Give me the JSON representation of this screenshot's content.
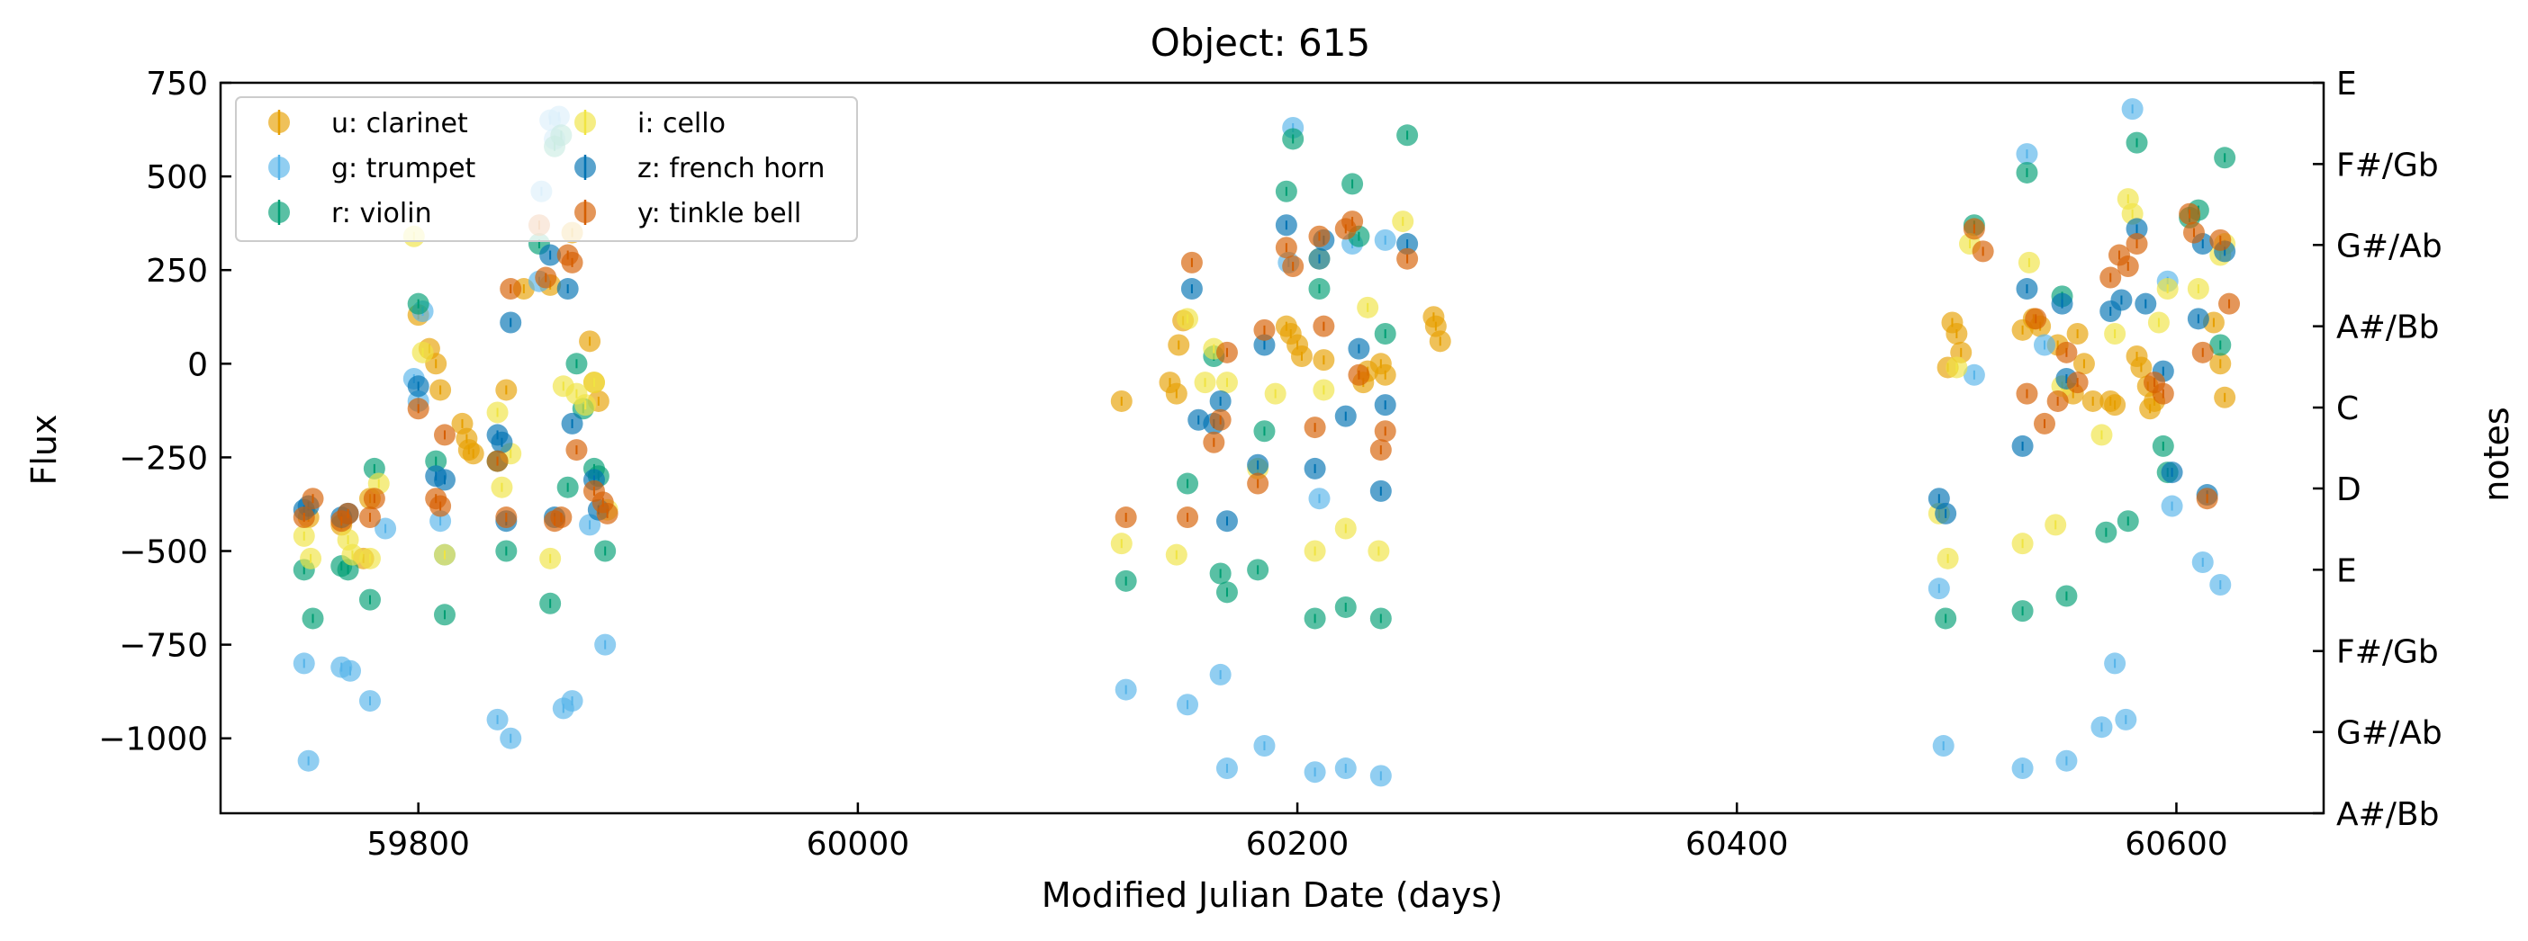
{
  "chart_data": {
    "type": "scatter",
    "title": "Object: 615",
    "xlabel": "Modified Julian Date (days)",
    "ylabel": "Flux",
    "y2label": "notes",
    "xlim": [
      59710,
      60667
    ],
    "ylim": [
      -1200,
      750
    ],
    "x_ticks": [
      59800,
      60000,
      60200,
      60400,
      60600
    ],
    "y_ticks": [
      750,
      500,
      250,
      0,
      -250,
      -500,
      -750,
      -1000
    ],
    "y_tick_labels": [
      "750",
      "500",
      "250",
      "0",
      "−250",
      "−500",
      "−750",
      "−1000"
    ],
    "y2_ticks": [
      {
        "label": "E",
        "value": 750
      },
      {
        "label": "F#/Gb",
        "value": 533
      },
      {
        "label": "G#/Ab",
        "value": 317
      },
      {
        "label": "A#/Bb",
        "value": 100
      },
      {
        "label": "C",
        "value": -117
      },
      {
        "label": "D",
        "value": -333
      },
      {
        "label": "E",
        "value": -550
      },
      {
        "label": "F#/Gb",
        "value": -767
      },
      {
        "label": "G#/Ab",
        "value": -983
      },
      {
        "label": "A#/Bb",
        "value": -1200
      }
    ],
    "legend_location": "upper left",
    "legend_columns": 2,
    "grid": false,
    "series": [
      {
        "name": "u: clarinet",
        "color": "#E69F00",
        "x": [
          59750,
          59765,
          59775,
          59778,
          59800,
          59805,
          59808,
          59810,
          59820,
          59822,
          59823,
          59825,
          59840,
          59848,
          59860,
          59870,
          59878,
          59880,
          59882,
          60120,
          60142,
          60145,
          60146,
          60148,
          60195,
          60197,
          60200,
          60202,
          60212,
          60230,
          60232,
          60238,
          60240,
          60262,
          60263,
          60265,
          60496,
          60498,
          60500,
          60502,
          60530,
          60535,
          60538,
          60546,
          60553,
          60555,
          60558,
          60562,
          60570,
          60572,
          60582,
          60584,
          60587,
          60588,
          60590,
          60617,
          60620,
          60622
        ],
        "y": [
          -410,
          -430,
          -520,
          -360,
          130,
          40,
          0,
          -70,
          -160,
          -200,
          -230,
          -240,
          -70,
          200,
          210,
          350,
          60,
          -50,
          -100,
          -100,
          -50,
          -80,
          50,
          115,
          100,
          80,
          50,
          20,
          10,
          -50,
          -20,
          0,
          -30,
          125,
          100,
          60,
          -10,
          110,
          80,
          30,
          90,
          120,
          100,
          50,
          -80,
          80,
          0,
          -100,
          -100,
          -110,
          20,
          -10,
          -60,
          -120,
          -100,
          110,
          0,
          -90
        ]
      },
      {
        "name": "g: trumpet",
        "color": "#56B4E9",
        "x": [
          59748,
          59750,
          59765,
          59769,
          59778,
          59785,
          59798,
          59800,
          59802,
          59810,
          59812,
          59836,
          59842,
          59855,
          59856,
          59860,
          59862,
          59864,
          59866,
          59870,
          59878,
          59885,
          60122,
          60150,
          60165,
          60168,
          60185,
          60196,
          60198,
          60208,
          60210,
          60222,
          60225,
          60238,
          60240,
          60492,
          60494,
          60508,
          60530,
          60532,
          60540,
          60550,
          60566,
          60572,
          60577,
          60580,
          60596,
          60598,
          60612,
          60620
        ],
        "y": [
          -800,
          -1060,
          -810,
          -820,
          -900,
          -440,
          -40,
          -100,
          140,
          -420,
          -510,
          -950,
          -1000,
          220,
          460,
          650,
          600,
          660,
          -920,
          -900,
          -430,
          -750,
          -870,
          -910,
          -830,
          -1080,
          -1020,
          270,
          630,
          -1090,
          -360,
          -1080,
          320,
          -1100,
          330,
          -600,
          -1020,
          -30,
          -1080,
          560,
          50,
          -1060,
          -970,
          -800,
          -950,
          680,
          220,
          -380,
          -530,
          -590
        ]
      },
      {
        "name": "r: violin",
        "color": "#009E73",
        "x": [
          59748,
          59752,
          59765,
          59768,
          59778,
          59780,
          59800,
          59808,
          59812,
          59836,
          59840,
          59855,
          59860,
          59862,
          59865,
          59868,
          59872,
          59875,
          59880,
          59882,
          59885,
          60122,
          60150,
          60162,
          60165,
          60168,
          60182,
          60185,
          60195,
          60198,
          60208,
          60210,
          60222,
          60225,
          60228,
          60238,
          60240,
          60250,
          60495,
          60508,
          60530,
          60532,
          60548,
          60550,
          60568,
          60578,
          60582,
          60594,
          60596,
          60606,
          60610,
          60620,
          60622
        ],
        "y": [
          -550,
          -680,
          -540,
          -550,
          -630,
          -280,
          160,
          -260,
          -670,
          -260,
          -500,
          320,
          -640,
          580,
          610,
          -330,
          0,
          -120,
          -280,
          -300,
          -500,
          -580,
          -320,
          20,
          -560,
          -610,
          -550,
          -180,
          460,
          600,
          -680,
          200,
          -650,
          480,
          340,
          -680,
          80,
          610,
          -680,
          370,
          -660,
          510,
          180,
          -620,
          -450,
          -420,
          590,
          -220,
          -290,
          390,
          410,
          50,
          550
        ]
      },
      {
        "name": "i: cello",
        "color": "#F0E442",
        "x": [
          59748,
          59751,
          59768,
          59770,
          59778,
          59782,
          59798,
          59802,
          59812,
          59836,
          59838,
          59842,
          59860,
          59866,
          59872,
          59876,
          59880,
          59886,
          60120,
          60145,
          60150,
          60158,
          60162,
          60168,
          60182,
          60190,
          60208,
          60210,
          60212,
          60222,
          60232,
          60237,
          60248,
          60492,
          60496,
          60500,
          60506,
          60530,
          60533,
          60545,
          60548,
          60566,
          60572,
          60578,
          60580,
          60592,
          60596,
          60610,
          60620,
          60622
        ],
        "y": [
          -460,
          -520,
          -470,
          -510,
          -520,
          -320,
          340,
          30,
          -510,
          -130,
          -330,
          -240,
          -520,
          -60,
          -80,
          -110,
          -50,
          -390,
          -480,
          -510,
          120,
          -50,
          40,
          -50,
          -280,
          -80,
          -500,
          280,
          -70,
          -440,
          150,
          -500,
          380,
          -400,
          -520,
          -10,
          320,
          -480,
          270,
          -430,
          -60,
          -190,
          80,
          440,
          400,
          110,
          200,
          200,
          290,
          320
        ]
      },
      {
        "name": "z: french horn",
        "color": "#0072B2",
        "x": [
          59748,
          59750,
          59765,
          59768,
          59800,
          59808,
          59812,
          59836,
          59838,
          59840,
          59842,
          59860,
          59862,
          59868,
          59870,
          59880,
          59882,
          60152,
          60155,
          60162,
          60165,
          60168,
          60182,
          60185,
          60195,
          60208,
          60210,
          60212,
          60222,
          60228,
          60238,
          60240,
          60250,
          60492,
          60495,
          60530,
          60532,
          60548,
          60550,
          60570,
          60575,
          60582,
          60586,
          60594,
          60598,
          60610,
          60612,
          60614,
          60622
        ],
        "y": [
          -390,
          -380,
          -410,
          -400,
          -60,
          -300,
          -310,
          -190,
          -210,
          -420,
          110,
          290,
          -410,
          200,
          -160,
          -310,
          -390,
          200,
          -150,
          -160,
          -100,
          -420,
          -270,
          50,
          370,
          -280,
          280,
          330,
          -140,
          40,
          -340,
          -110,
          320,
          -360,
          -400,
          -220,
          200,
          160,
          -40,
          140,
          170,
          360,
          160,
          -20,
          -290,
          120,
          320,
          -350,
          300
        ]
      },
      {
        "name": "y: tinkle bell",
        "color": "#D55E00",
        "x": [
          59748,
          59752,
          59765,
          59768,
          59778,
          59780,
          59800,
          59808,
          59810,
          59812,
          59836,
          59840,
          59842,
          59855,
          59858,
          59862,
          59865,
          59868,
          59870,
          59872,
          59880,
          59884,
          59886,
          60122,
          60150,
          60152,
          60162,
          60165,
          60168,
          60182,
          60185,
          60195,
          60198,
          60208,
          60210,
          60212,
          60222,
          60225,
          60228,
          60238,
          60240,
          60250,
          60508,
          60512,
          60532,
          60536,
          60540,
          60546,
          60550,
          60555,
          60570,
          60574,
          60578,
          60582,
          60590,
          60594,
          60606,
          60608,
          60612,
          60614,
          60620,
          60624
        ],
        "y": [
          -410,
          -360,
          -420,
          -400,
          -410,
          -360,
          -120,
          -360,
          -380,
          -190,
          -260,
          -410,
          200,
          370,
          230,
          -420,
          -410,
          290,
          270,
          -230,
          -340,
          -370,
          -400,
          -410,
          -410,
          270,
          -210,
          -150,
          30,
          -320,
          90,
          310,
          260,
          -170,
          340,
          100,
          360,
          380,
          -30,
          -230,
          -180,
          280,
          360,
          300,
          -80,
          120,
          -160,
          -100,
          30,
          -50,
          230,
          290,
          260,
          320,
          -50,
          -80,
          400,
          350,
          30,
          -360,
          330,
          160
        ]
      }
    ]
  }
}
